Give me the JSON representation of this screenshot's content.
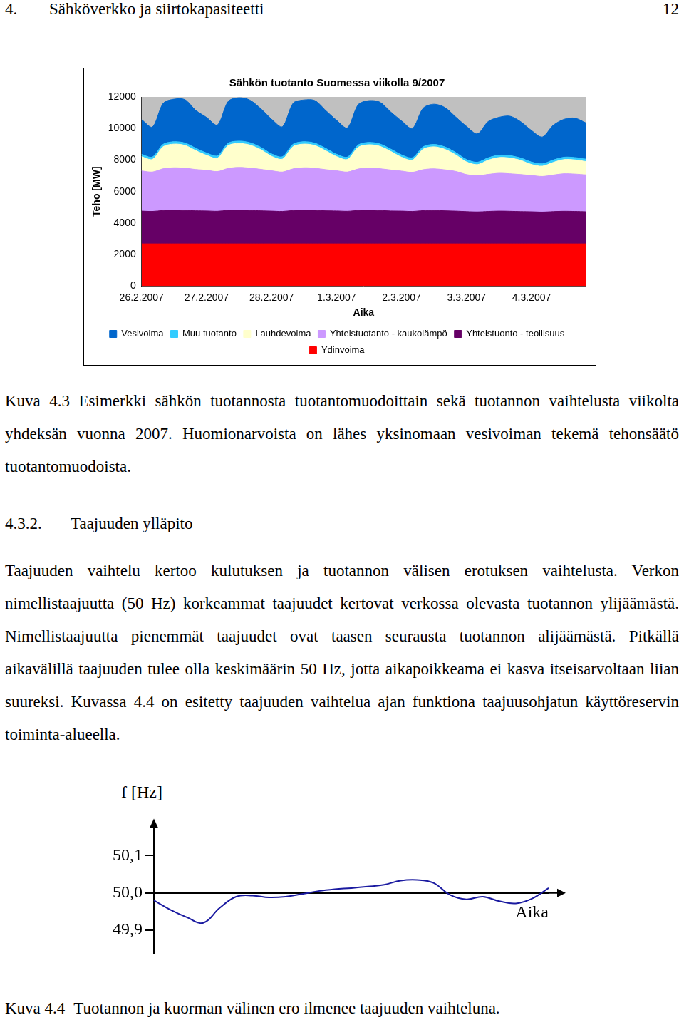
{
  "document": {
    "header": {
      "number": "4.",
      "title": "Sähköverkko ja siirtokapasiteetti",
      "page": "12"
    },
    "figure_1_caption": {
      "label": "Kuva 4.3",
      "text": "Esimerkki sähkön tuotannosta tuotantomuodoittain sekä tuotannon vaihtelusta viikolta yhdeksän vuonna 2007. Huomionarvoista on lähes yksinomaan vesivoiman tekemä tehonsäätö tuotantomuodoista."
    },
    "section": {
      "number": "4.3.2.",
      "title": "Taajuuden ylläpito"
    },
    "paragraph": "Taajuuden vaihtelu kertoo kulutuksen ja tuotannon välisen erotuksen vaihtelusta. Verkon nimellistaajuutta (50 Hz) korkeammat taajuudet kertovat verkossa olevasta tuotannon ylijäämästä. Nimellistaajuutta pienemmät taajuudet ovat taasen seurausta tuotannon alijäämästä. Pitkällä aikavälillä taajuuden tulee olla keskimäärin 50 Hz, jotta aikapoikkeama ei kasva itseisarvoltaan liian suureksi. Kuvassa 4.4 on esitetty taajuuden vaihtelua ajan funktiona taajuusohjatun käyttöreservin toiminta-alueella.",
    "figure_2_caption": {
      "label": "Kuva 4.4",
      "text": "Tuotannon ja kuorman välinen ero ilmenee taajuuden vaihteluna."
    }
  },
  "chart_data": [
    {
      "type": "area",
      "stacked": true,
      "title": "Sähkön tuotanto Suomessa viikolla 9/2007",
      "x_label": "Aika",
      "y_label": "Teho [MW]",
      "categories": [
        "26.2.2007",
        null,
        null,
        null,
        null,
        null,
        "27.2.2007",
        null,
        null,
        null,
        null,
        null,
        "28.2.2007",
        null,
        null,
        null,
        null,
        null,
        "1.3.2007",
        null,
        null,
        null,
        null,
        null,
        "2.3.2007",
        null,
        null,
        null,
        null,
        null,
        "3.3.2007",
        null,
        null,
        null,
        null,
        null,
        "4.3.2007",
        null,
        null,
        null,
        null,
        null
      ],
      "series": [
        {
          "name": "Ydinvoima",
          "color": "#ff0000",
          "values": [
            2680,
            2680,
            2680,
            2680,
            2680,
            2680,
            2680,
            2680,
            2680,
            2680,
            2680,
            2680,
            2680,
            2680,
            2680,
            2680,
            2680,
            2680,
            2680,
            2680,
            2680,
            2680,
            2680,
            2680,
            2680,
            2680,
            2680,
            2680,
            2680,
            2680,
            2680,
            2680,
            2680,
            2680,
            2680,
            2680,
            2680,
            2680,
            2680,
            2680,
            2680,
            2680
          ]
        },
        {
          "name": "Yhteistuonto - teollisuus",
          "color": "#660066",
          "values": [
            2080,
            2060,
            2120,
            2130,
            2120,
            2100,
            2090,
            2070,
            2130,
            2140,
            2120,
            2100,
            2080,
            2060,
            2120,
            2140,
            2130,
            2100,
            2090,
            2070,
            2120,
            2130,
            2120,
            2090,
            2080,
            2060,
            2110,
            2120,
            2100,
            2080,
            2050,
            2030,
            2060,
            2080,
            2070,
            2050,
            2040,
            2020,
            2050,
            2070,
            2060,
            2040
          ]
        },
        {
          "name": "Yhteistuotanto - kaukolämpö",
          "color": "#cc99ff",
          "values": [
            2550,
            2500,
            2650,
            2700,
            2680,
            2620,
            2580,
            2520,
            2660,
            2710,
            2690,
            2630,
            2560,
            2500,
            2640,
            2690,
            2670,
            2610,
            2550,
            2490,
            2630,
            2680,
            2650,
            2600,
            2540,
            2480,
            2600,
            2640,
            2600,
            2520,
            2350,
            2300,
            2350,
            2400,
            2380,
            2350,
            2300,
            2260,
            2320,
            2380,
            2370,
            2340
          ]
        },
        {
          "name": "Lauhdevoima",
          "color": "#ffffcc",
          "values": [
            900,
            800,
            1400,
            1500,
            1450,
            1200,
            950,
            850,
            1450,
            1520,
            1460,
            1250,
            920,
            820,
            1420,
            1500,
            1440,
            1200,
            900,
            800,
            1380,
            1480,
            1420,
            1180,
            880,
            780,
            1300,
            1400,
            1300,
            1050,
            800,
            700,
            900,
            1000,
            1000,
            900,
            700,
            650,
            800,
            900,
            900,
            850
          ]
        },
        {
          "name": "Muu tuotanto",
          "color": "#33ccff",
          "values": [
            150,
            150,
            150,
            150,
            150,
            150,
            150,
            150,
            150,
            150,
            150,
            150,
            150,
            150,
            150,
            150,
            150,
            150,
            150,
            150,
            150,
            150,
            150,
            150,
            150,
            150,
            150,
            150,
            150,
            150,
            150,
            150,
            150,
            150,
            150,
            150,
            150,
            150,
            150,
            150,
            150,
            150
          ]
        },
        {
          "name": "Vesivoima",
          "color": "#0066cc",
          "values": [
            2200,
            1900,
            2600,
            2700,
            2750,
            2400,
            2250,
            1950,
            2650,
            2750,
            2700,
            2450,
            2200,
            1900,
            2600,
            2650,
            2700,
            2400,
            2150,
            1850,
            2550,
            2650,
            2650,
            2350,
            2150,
            1850,
            2450,
            2550,
            2500,
            2250,
            2100,
            1800,
            2300,
            2400,
            2500,
            2300,
            2000,
            1700,
            2200,
            2400,
            2500,
            2300
          ]
        }
      ],
      "ylim": [
        0,
        12000
      ],
      "yticks": [
        0,
        2000,
        4000,
        6000,
        8000,
        10000,
        12000
      ],
      "grid": false,
      "legend": "bottom"
    },
    {
      "type": "line",
      "x_label": "Aika",
      "y_label": "f [Hz]",
      "categories": [
        null,
        null,
        null,
        null,
        null,
        null,
        null,
        null,
        null,
        null,
        null,
        null,
        null,
        null,
        null,
        null,
        null,
        null,
        null,
        null,
        null,
        null,
        null,
        null,
        null
      ],
      "values": [
        49.98,
        49.955,
        49.935,
        49.92,
        49.96,
        49.99,
        49.993,
        49.988,
        49.99,
        49.997,
        50.005,
        50.01,
        50.013,
        50.017,
        50.022,
        50.033,
        50.035,
        50.027,
        49.995,
        49.983,
        49.99,
        49.978,
        49.972,
        49.985,
        50.013
      ],
      "color": "#1a1aa0",
      "ylim": [
        49.84,
        50.18
      ],
      "yticks": [
        {
          "value": 49.9,
          "label": "49,9"
        },
        {
          "value": 50.0,
          "label": "50,0"
        },
        {
          "value": 50.1,
          "label": "50,1"
        }
      ],
      "grid": false,
      "tick_labels": "y"
    }
  ]
}
